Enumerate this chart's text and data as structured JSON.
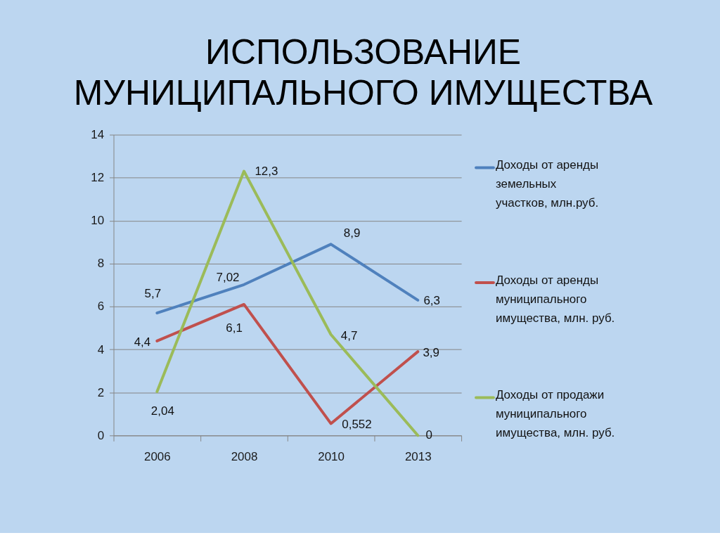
{
  "chart_data": {
    "type": "line",
    "title": "ИСПОЛЬЗОВАНИЕ МУНИЦИПАЛЬНОГО ИМУЩЕСТВА",
    "categories": [
      "2006",
      "2008",
      "2010",
      "2013"
    ],
    "series": [
      {
        "name": "Доходы от аренды земельных участков, млн.руб.",
        "color": "#4f81bd",
        "values": [
          5.7,
          7.02,
          8.9,
          6.3
        ],
        "value_labels": [
          "5,7",
          "7,02",
          "8,9",
          "6,3"
        ]
      },
      {
        "name": "Доходы от аренды муниципального имущества, млн. руб.",
        "color": "#c0504d",
        "values": [
          4.4,
          6.1,
          0.552,
          3.9
        ],
        "value_labels": [
          "4,4",
          "6,1",
          "0,552",
          "3,9"
        ]
      },
      {
        "name": "Доходы от продажи муниципального имущества, млн. руб.",
        "color": "#9bbb59",
        "values": [
          2.04,
          12.3,
          4.7,
          0
        ],
        "value_labels": [
          "2,04",
          "12,3",
          "4,7",
          "0"
        ]
      }
    ],
    "ylim": [
      0,
      14
    ],
    "yticks": [
      0,
      2,
      4,
      6,
      8,
      10,
      12,
      14
    ],
    "grid": "y",
    "legend": "right",
    "line_style": "solid"
  }
}
